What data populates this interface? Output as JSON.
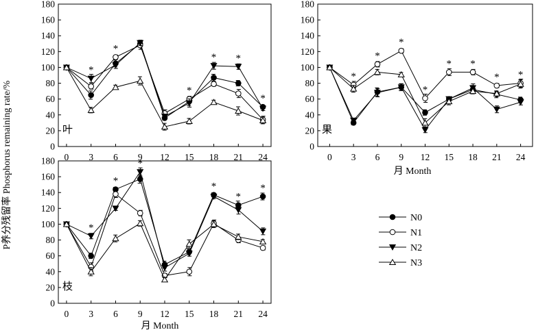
{
  "figure": {
    "ylabel": "P养分残留率 Phosphorus remaining rate/%",
    "xlabel": "月 Month",
    "legend": [
      "N0",
      "N1",
      "N2",
      "N3"
    ]
  },
  "chart_data": [
    {
      "type": "line",
      "panel_label": "叶",
      "x": [
        0,
        3,
        6,
        9,
        12,
        15,
        18,
        21,
        24
      ],
      "xticks": [
        "0",
        "3",
        "6",
        "9",
        "12",
        "15",
        "18",
        "21",
        "24"
      ],
      "yticks": [
        "0",
        "20",
        "40",
        "60",
        "80",
        "100",
        "120",
        "140",
        "160",
        "180"
      ],
      "ylim": [
        0,
        180
      ],
      "grid": false,
      "series": [
        {
          "name": "N0",
          "values": [
            100,
            65,
            105,
            130,
            36,
            57,
            87,
            80,
            50
          ]
        },
        {
          "name": "N1",
          "values": [
            100,
            76,
            113,
            128,
            42,
            60,
            79,
            67,
            34
          ]
        },
        {
          "name": "N2",
          "values": [
            100,
            86,
            103,
            131,
            38,
            55,
            102,
            101,
            48
          ]
        },
        {
          "name": "N3",
          "values": [
            100,
            46,
            75,
            83,
            25,
            32,
            56,
            45,
            33
          ]
        }
      ],
      "significance_at_x": [
        3,
        6,
        15,
        18,
        21,
        24
      ]
    },
    {
      "type": "line",
      "panel_label": "果",
      "x": [
        0,
        3,
        6,
        9,
        12,
        15,
        18,
        21,
        24
      ],
      "xticks": [
        "0",
        "3",
        "6",
        "9",
        "12",
        "15",
        "18",
        "21",
        "24"
      ],
      "yticks": [
        "0",
        "20",
        "40",
        "60",
        "80",
        "100",
        "120",
        "140",
        "160",
        "180"
      ],
      "ylim": [
        0,
        180
      ],
      "grid": false,
      "series": [
        {
          "name": "N0",
          "values": [
            100,
            30,
            69,
            75,
            43,
            60,
            72,
            66,
            59
          ]
        },
        {
          "name": "N1",
          "values": [
            100,
            78,
            104,
            121,
            61,
            94,
            94,
            77,
            80
          ]
        },
        {
          "name": "N2",
          "values": [
            100,
            33,
            68,
            75,
            21,
            60,
            74,
            47,
            56
          ]
        },
        {
          "name": "N3",
          "values": [
            100,
            73,
            94,
            91,
            30,
            57,
            70,
            67,
            79
          ]
        }
      ],
      "significance_at_x": [
        3,
        6,
        9,
        12,
        15,
        18,
        21,
        24
      ]
    },
    {
      "type": "line",
      "panel_label": "枝",
      "x": [
        0,
        3,
        6,
        9,
        12,
        15,
        18,
        21,
        24
      ],
      "xticks": [
        "0",
        "3",
        "6",
        "9",
        "12",
        "15",
        "18",
        "21",
        "24"
      ],
      "yticks": [
        "0",
        "20",
        "40",
        "60",
        "80",
        "100",
        "120",
        "140",
        "160",
        "180"
      ],
      "ylim": [
        0,
        180
      ],
      "grid": false,
      "series": [
        {
          "name": "N0",
          "values": [
            100,
            60,
            144,
            157,
            49,
            65,
            137,
            124,
            135
          ]
        },
        {
          "name": "N1",
          "values": [
            100,
            46,
            138,
            114,
            35,
            40,
            101,
            80,
            70
          ]
        },
        {
          "name": "N2",
          "values": [
            100,
            85,
            120,
            166,
            45,
            63,
            135,
            118,
            91
          ]
        },
        {
          "name": "N3",
          "values": [
            100,
            40,
            82,
            101,
            30,
            75,
            100,
            84,
            78
          ]
        }
      ],
      "significance_at_x": [
        3,
        6,
        9,
        18,
        21,
        24
      ]
    }
  ]
}
